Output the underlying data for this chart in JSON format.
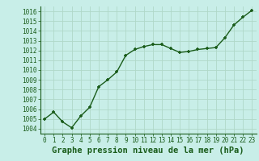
{
  "x": [
    0,
    1,
    2,
    3,
    4,
    5,
    6,
    7,
    8,
    9,
    10,
    11,
    12,
    13,
    14,
    15,
    16,
    17,
    18,
    19,
    20,
    21,
    22,
    23
  ],
  "y": [
    1005.0,
    1005.7,
    1004.7,
    1004.1,
    1005.3,
    1006.2,
    1008.3,
    1009.0,
    1009.8,
    1011.5,
    1012.1,
    1012.4,
    1012.6,
    1012.6,
    1012.2,
    1011.8,
    1011.9,
    1012.1,
    1012.2,
    1012.3,
    1013.3,
    1014.6,
    1015.4,
    1016.1
  ],
  "line_color": "#1a5c1a",
  "marker_color": "#1a5c1a",
  "bg_color": "#c8eee8",
  "grid_color": "#b0d8c8",
  "xlabel": "Graphe pression niveau de la mer (hPa)",
  "ylim": [
    1003.5,
    1016.5
  ],
  "yticks": [
    1004,
    1005,
    1006,
    1007,
    1008,
    1009,
    1010,
    1011,
    1012,
    1013,
    1014,
    1015,
    1016
  ],
  "xticks": [
    0,
    1,
    2,
    3,
    4,
    5,
    6,
    7,
    8,
    9,
    10,
    11,
    12,
    13,
    14,
    15,
    16,
    17,
    18,
    19,
    20,
    21,
    22,
    23
  ],
  "xlim": [
    -0.5,
    23.5
  ],
  "tick_fontsize": 5.5,
  "xlabel_fontsize": 7.5,
  "marker_size": 3.5,
  "line_width": 1.0
}
